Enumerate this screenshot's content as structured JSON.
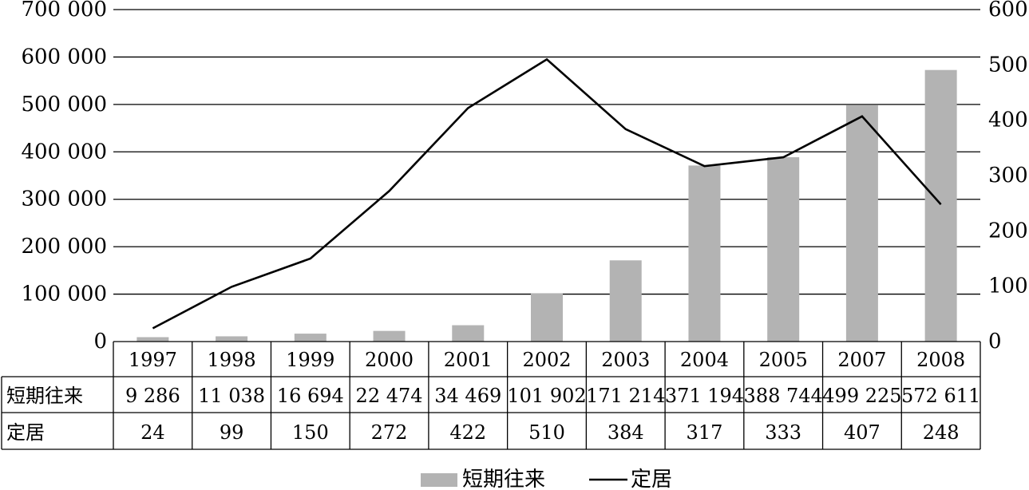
{
  "chart_data": {
    "type": "bar",
    "categories": [
      "1997",
      "1998",
      "1999",
      "2000",
      "2001",
      "2002",
      "2003",
      "2004",
      "2005",
      "2007",
      "2008"
    ],
    "series": [
      {
        "name": "短期往来",
        "type": "bar",
        "axis": "left",
        "color": "#b3b3b3",
        "values": [
          9286,
          11038,
          16694,
          22474,
          34469,
          101902,
          171214,
          371194,
          388744,
          499225,
          572611
        ],
        "labels": [
          "9 286",
          "11 038",
          "16 694",
          "22 474",
          "34 469",
          "101 902",
          "171 214",
          "371 194",
          "388 744",
          "499 225",
          "572 611"
        ]
      },
      {
        "name": "定居",
        "type": "line",
        "axis": "right",
        "color": "#000000",
        "values": [
          24,
          99,
          150,
          272,
          422,
          510,
          384,
          317,
          333,
          407,
          248
        ],
        "labels": [
          "24",
          "99",
          "150",
          "272",
          "422",
          "510",
          "384",
          "317",
          "333",
          "407",
          "248"
        ]
      }
    ],
    "y_left": {
      "ylim": [
        0,
        700000
      ],
      "ticks": [
        0,
        100000,
        200000,
        300000,
        400000,
        500000,
        600000,
        700000
      ],
      "tick_labels": [
        "0",
        "100 000",
        "200 000",
        "300 000",
        "400 000",
        "500 000",
        "600 000",
        "700 000"
      ]
    },
    "y_right": {
      "ylim": [
        0,
        600
      ],
      "ticks": [
        0,
        100,
        200,
        300,
        400,
        500,
        600
      ],
      "tick_labels": [
        "0",
        "100",
        "200",
        "300",
        "400",
        "500",
        "600"
      ]
    },
    "grid": true,
    "legend_position": "bottom-center",
    "data_table": true
  }
}
